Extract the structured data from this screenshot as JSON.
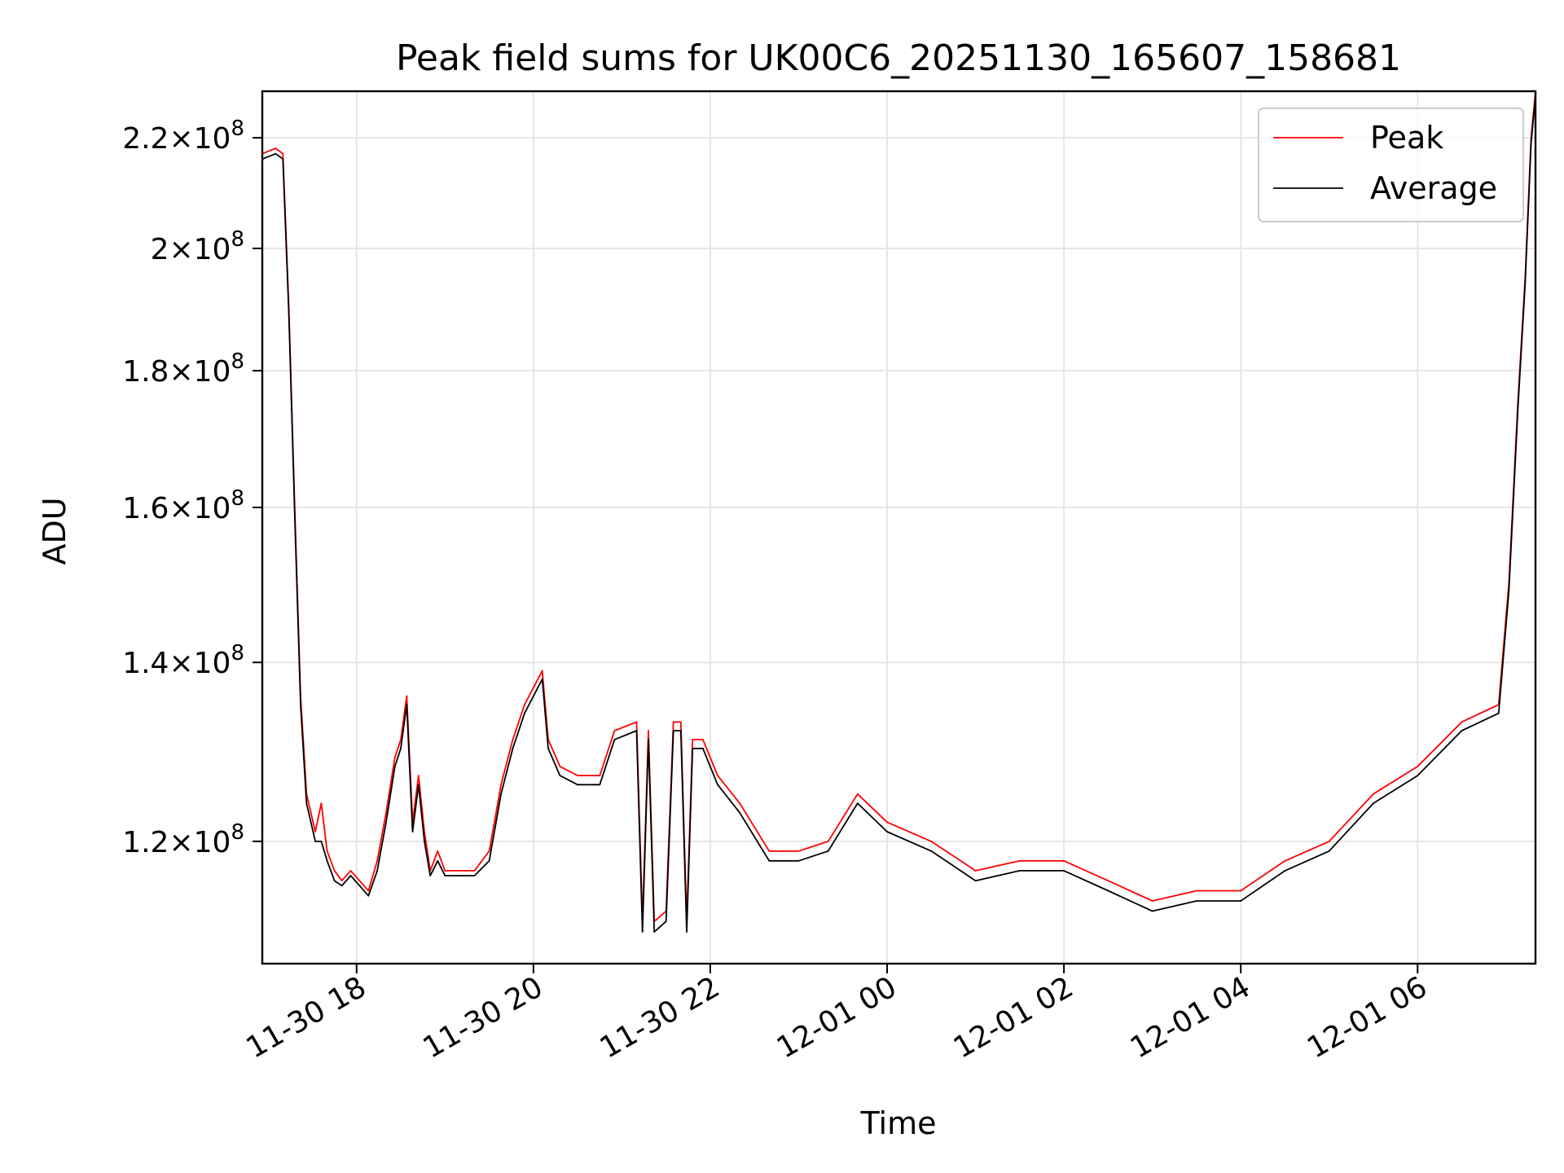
{
  "chart_data": {
    "type": "line",
    "title": "Peak field sums for UK00C6_20251130_165607_158681",
    "xlabel": "Time",
    "ylabel": "ADU",
    "y_scale": "log",
    "ylim": [
      108000000,
      229000000
    ],
    "xlim": [
      "2025-11-30 16:56",
      "2025-12-01 07:20"
    ],
    "grid": true,
    "legend_position": "top-right",
    "x_ticks": [
      {
        "value": "2025-11-30 18:00",
        "label": "11-30 18"
      },
      {
        "value": "2025-11-30 20:00",
        "label": "11-30 20"
      },
      {
        "value": "2025-11-30 22:00",
        "label": "11-30 22"
      },
      {
        "value": "2025-12-01 00:00",
        "label": "12-01 00"
      },
      {
        "value": "2025-12-01 02:00",
        "label": "12-01 02"
      },
      {
        "value": "2025-12-01 04:00",
        "label": "12-01 04"
      },
      {
        "value": "2025-12-01 06:00",
        "label": "12-01 06"
      }
    ],
    "y_ticks": [
      {
        "value": 120000000,
        "mantissa": "1.2",
        "exp": "8"
      },
      {
        "value": 140000000,
        "mantissa": "1.4",
        "exp": "8"
      },
      {
        "value": 160000000,
        "mantissa": "1.6",
        "exp": "8"
      },
      {
        "value": 180000000,
        "mantissa": "1.8",
        "exp": "8"
      },
      {
        "value": 200000000,
        "mantissa": "2",
        "exp": "8"
      },
      {
        "value": 220000000,
        "mantissa": "2.2",
        "exp": "8"
      }
    ],
    "series": [
      {
        "name": "Peak",
        "color": "#ff0000",
        "points": [
          [
            "2025-11-30 16:56",
            217000000.0
          ],
          [
            "2025-11-30 17:05",
            218000000.0
          ],
          [
            "2025-11-30 17:10",
            217000000.0
          ],
          [
            "2025-11-30 17:14",
            190000000.0
          ],
          [
            "2025-11-30 17:18",
            160000000.0
          ],
          [
            "2025-11-30 17:22",
            136000000.0
          ],
          [
            "2025-11-30 17:26",
            125000000.0
          ],
          [
            "2025-11-30 17:32",
            121000000.0
          ],
          [
            "2025-11-30 17:36",
            124000000.0
          ],
          [
            "2025-11-30 17:40",
            119000000.0
          ],
          [
            "2025-11-30 17:45",
            117000000.0
          ],
          [
            "2025-11-30 17:50",
            116000000.0
          ],
          [
            "2025-11-30 17:56",
            117000000.0
          ],
          [
            "2025-11-30 18:02",
            116000000.0
          ],
          [
            "2025-11-30 18:08",
            115000000.0
          ],
          [
            "2025-11-30 18:14",
            118000000.0
          ],
          [
            "2025-11-30 18:20",
            123000000.0
          ],
          [
            "2025-11-30 18:26",
            129000000.0
          ],
          [
            "2025-11-30 18:30",
            131000000.0
          ],
          [
            "2025-11-30 18:34",
            136000000.0
          ],
          [
            "2025-11-30 18:38",
            122000000.0
          ],
          [
            "2025-11-30 18:42",
            127000000.0
          ],
          [
            "2025-11-30 18:46",
            121000000.0
          ],
          [
            "2025-11-30 18:50",
            117000000.0
          ],
          [
            "2025-11-30 18:55",
            119000000.0
          ],
          [
            "2025-11-30 19:00",
            117000000.0
          ],
          [
            "2025-11-30 19:10",
            117000000.0
          ],
          [
            "2025-11-30 19:20",
            117000000.0
          ],
          [
            "2025-11-30 19:30",
            119000000.0
          ],
          [
            "2025-11-30 19:38",
            126000000.0
          ],
          [
            "2025-11-30 19:46",
            131000000.0
          ],
          [
            "2025-11-30 19:54",
            135000000.0
          ],
          [
            "2025-11-30 20:00",
            137000000.0
          ],
          [
            "2025-11-30 20:06",
            139000000.0
          ],
          [
            "2025-11-30 20:10",
            131000000.0
          ],
          [
            "2025-11-30 20:18",
            128000000.0
          ],
          [
            "2025-11-30 20:30",
            127000000.0
          ],
          [
            "2025-11-30 20:45",
            127000000.0
          ],
          [
            "2025-11-30 20:55",
            132000000.0
          ],
          [
            "2025-11-30 21:10",
            133000000.0
          ],
          [
            "2025-11-30 21:14",
            112000000.0
          ],
          [
            "2025-11-30 21:18",
            132000000.0
          ],
          [
            "2025-11-30 21:22",
            112000000.0
          ],
          [
            "2025-11-30 21:30",
            113000000.0
          ],
          [
            "2025-11-30 21:35",
            133000000.0
          ],
          [
            "2025-11-30 21:40",
            133000000.0
          ],
          [
            "2025-11-30 21:44",
            112000000.0
          ],
          [
            "2025-11-30 21:48",
            131000000.0
          ],
          [
            "2025-11-30 21:55",
            131000000.0
          ],
          [
            "2025-11-30 22:05",
            127000000.0
          ],
          [
            "2025-11-30 22:20",
            124000000.0
          ],
          [
            "2025-11-30 22:40",
            119000000.0
          ],
          [
            "2025-11-30 23:00",
            119000000.0
          ],
          [
            "2025-11-30 23:20",
            120000000.0
          ],
          [
            "2025-11-30 23:40",
            125000000.0
          ],
          [
            "2025-12-01 00:00",
            122000000.0
          ],
          [
            "2025-12-01 00:30",
            120000000.0
          ],
          [
            "2025-12-01 01:00",
            117000000.0
          ],
          [
            "2025-12-01 01:30",
            118000000.0
          ],
          [
            "2025-12-01 02:00",
            118000000.0
          ],
          [
            "2025-12-01 02:30",
            116000000.0
          ],
          [
            "2025-12-01 03:00",
            114000000.0
          ],
          [
            "2025-12-01 03:30",
            115000000.0
          ],
          [
            "2025-12-01 04:00",
            115000000.0
          ],
          [
            "2025-12-01 04:30",
            118000000.0
          ],
          [
            "2025-12-01 05:00",
            120000000.0
          ],
          [
            "2025-12-01 05:30",
            125000000.0
          ],
          [
            "2025-12-01 06:00",
            128000000.0
          ],
          [
            "2025-12-01 06:30",
            133000000.0
          ],
          [
            "2025-12-01 06:55",
            135000000.0
          ],
          [
            "2025-12-01 07:02",
            150000000.0
          ],
          [
            "2025-12-01 07:08",
            175000000.0
          ],
          [
            "2025-12-01 07:13",
            195000000.0
          ],
          [
            "2025-12-01 07:17",
            220000000.0
          ],
          [
            "2025-12-01 07:20",
            229000000.0
          ]
        ]
      },
      {
        "name": "Average",
        "color": "#000000",
        "points": [
          [
            "2025-11-30 16:56",
            216000000.0
          ],
          [
            "2025-11-30 17:05",
            217000000.0
          ],
          [
            "2025-11-30 17:10",
            216000000.0
          ],
          [
            "2025-11-30 17:14",
            189000000.0
          ],
          [
            "2025-11-30 17:18",
            159000000.0
          ],
          [
            "2025-11-30 17:22",
            135000000.0
          ],
          [
            "2025-11-30 17:26",
            124000000.0
          ],
          [
            "2025-11-30 17:32",
            120000000.0
          ],
          [
            "2025-11-30 17:36",
            120000000.0
          ],
          [
            "2025-11-30 17:40",
            118000000.0
          ],
          [
            "2025-11-30 17:45",
            116000000.0
          ],
          [
            "2025-11-30 17:50",
            115500000.0
          ],
          [
            "2025-11-30 17:56",
            116500000.0
          ],
          [
            "2025-11-30 18:02",
            115500000.0
          ],
          [
            "2025-11-30 18:08",
            114500000.0
          ],
          [
            "2025-11-30 18:14",
            117000000.0
          ],
          [
            "2025-11-30 18:20",
            122000000.0
          ],
          [
            "2025-11-30 18:26",
            128000000.0
          ],
          [
            "2025-11-30 18:30",
            130000000.0
          ],
          [
            "2025-11-30 18:34",
            135000000.0
          ],
          [
            "2025-11-30 18:38",
            121000000.0
          ],
          [
            "2025-11-30 18:42",
            126000000.0
          ],
          [
            "2025-11-30 18:46",
            120000000.0
          ],
          [
            "2025-11-30 18:50",
            116500000.0
          ],
          [
            "2025-11-30 18:55",
            118000000.0
          ],
          [
            "2025-11-30 19:00",
            116500000.0
          ],
          [
            "2025-11-30 19:10",
            116500000.0
          ],
          [
            "2025-11-30 19:20",
            116500000.0
          ],
          [
            "2025-11-30 19:30",
            118000000.0
          ],
          [
            "2025-11-30 19:38",
            125000000.0
          ],
          [
            "2025-11-30 19:46",
            130000000.0
          ],
          [
            "2025-11-30 19:54",
            134000000.0
          ],
          [
            "2025-11-30 20:00",
            136000000.0
          ],
          [
            "2025-11-30 20:06",
            138000000.0
          ],
          [
            "2025-11-30 20:10",
            130000000.0
          ],
          [
            "2025-11-30 20:18",
            127000000.0
          ],
          [
            "2025-11-30 20:30",
            126000000.0
          ],
          [
            "2025-11-30 20:45",
            126000000.0
          ],
          [
            "2025-11-30 20:55",
            131000000.0
          ],
          [
            "2025-11-30 21:10",
            132000000.0
          ],
          [
            "2025-11-30 21:14",
            111000000.0
          ],
          [
            "2025-11-30 21:18",
            131000000.0
          ],
          [
            "2025-11-30 21:22",
            111000000.0
          ],
          [
            "2025-11-30 21:30",
            112000000.0
          ],
          [
            "2025-11-30 21:35",
            132000000.0
          ],
          [
            "2025-11-30 21:40",
            132000000.0
          ],
          [
            "2025-11-30 21:44",
            111000000.0
          ],
          [
            "2025-11-30 21:48",
            130000000.0
          ],
          [
            "2025-11-30 21:55",
            130000000.0
          ],
          [
            "2025-11-30 22:05",
            126000000.0
          ],
          [
            "2025-11-30 22:20",
            123000000.0
          ],
          [
            "2025-11-30 22:40",
            118000000.0
          ],
          [
            "2025-11-30 23:00",
            118000000.0
          ],
          [
            "2025-11-30 23:20",
            119000000.0
          ],
          [
            "2025-11-30 23:40",
            124000000.0
          ],
          [
            "2025-12-01 00:00",
            121000000.0
          ],
          [
            "2025-12-01 00:30",
            119000000.0
          ],
          [
            "2025-12-01 01:00",
            116000000.0
          ],
          [
            "2025-12-01 01:30",
            117000000.0
          ],
          [
            "2025-12-01 02:00",
            117000000.0
          ],
          [
            "2025-12-01 02:30",
            115000000.0
          ],
          [
            "2025-12-01 03:00",
            113000000.0
          ],
          [
            "2025-12-01 03:30",
            114000000.0
          ],
          [
            "2025-12-01 04:00",
            114000000.0
          ],
          [
            "2025-12-01 04:30",
            117000000.0
          ],
          [
            "2025-12-01 05:00",
            119000000.0
          ],
          [
            "2025-12-01 05:30",
            124000000.0
          ],
          [
            "2025-12-01 06:00",
            127000000.0
          ],
          [
            "2025-12-01 06:30",
            132000000.0
          ],
          [
            "2025-12-01 06:55",
            134000000.0
          ],
          [
            "2025-12-01 07:02",
            149000000.0
          ],
          [
            "2025-12-01 07:08",
            174000000.0
          ],
          [
            "2025-12-01 07:13",
            194000000.0
          ],
          [
            "2025-12-01 07:17",
            219000000.0
          ],
          [
            "2025-12-01 07:20",
            228000000.0
          ]
        ]
      }
    ]
  }
}
